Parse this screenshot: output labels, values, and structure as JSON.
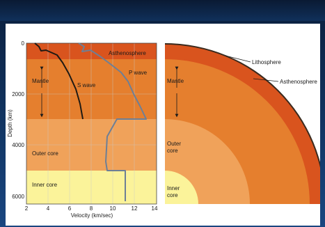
{
  "left_chart": {
    "y_axis_label": "Depth (km)",
    "x_axis_label": "Velocity (km/sec)",
    "y_ticks": [
      "0",
      "2000",
      "4000",
      "6000"
    ],
    "x_ticks": [
      "2",
      "4",
      "6",
      "8",
      "10",
      "12",
      "14"
    ],
    "labels": {
      "asthenosphere": "Asthenosphere",
      "mantle": "Mantle",
      "outer_core": "Outer core",
      "inner_core": "Inner core",
      "s_wave": "S wave",
      "p_wave": "P wave"
    }
  },
  "right_diagram": {
    "labels": {
      "lithosphere": "Lithosphere",
      "asthenosphere": "Asthenosphere",
      "mantle": "Mantle",
      "outer_core_line1": "Outer",
      "outer_core_line2": "core",
      "inner_core_line1": "Inner",
      "inner_core_line2": "core"
    }
  },
  "colors": {
    "slide_background": "#123766",
    "asthenosphere": "#d9541e",
    "mantle": "#e57f2e",
    "outer_core": "#f0a25a",
    "inner_core": "#fbf39a",
    "p_wave_line": "#6d7f96",
    "s_wave_line": "#1f1a14"
  }
}
